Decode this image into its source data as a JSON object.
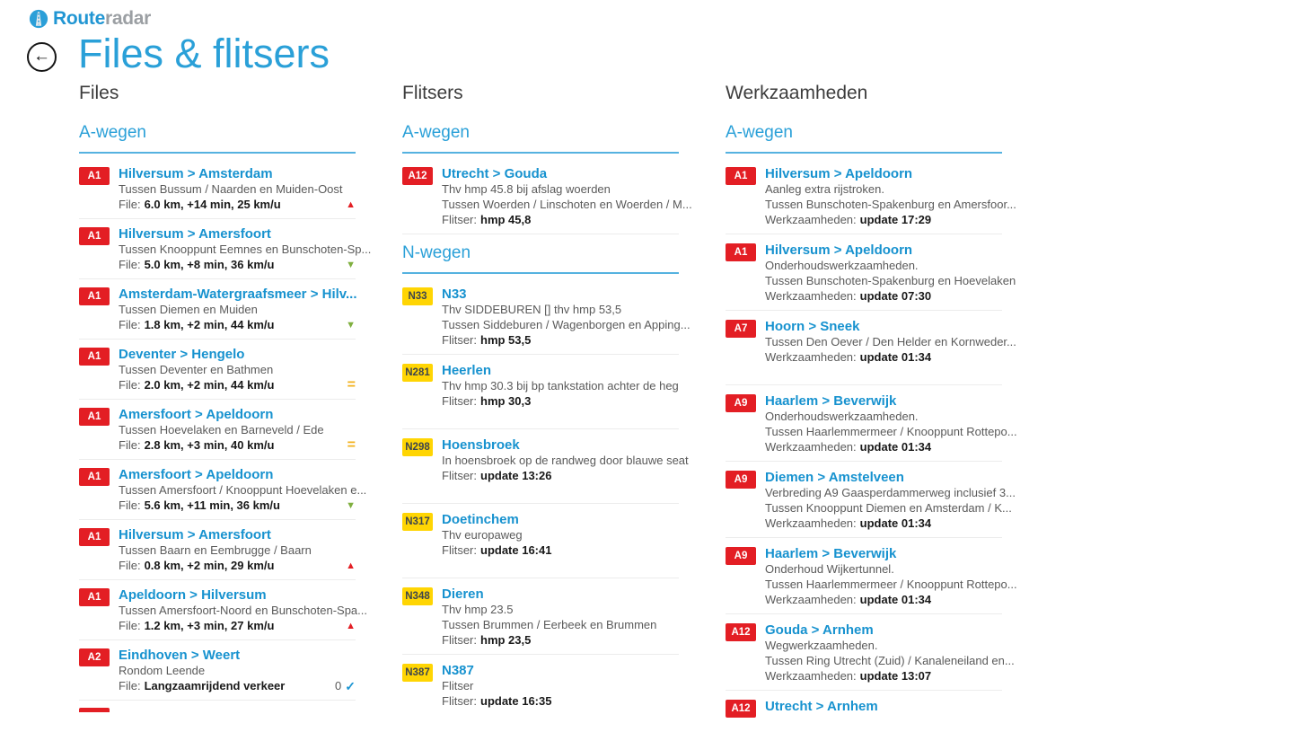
{
  "logo": {
    "route": "Route",
    "radar": "radar"
  },
  "back_icon": "←",
  "title": "Files & flitsers",
  "icons": {
    "up": "▲",
    "down": "▼",
    "equal": "=",
    "check": "✓"
  },
  "colors": {
    "accent_blue": "#2aa0d8",
    "item_title_blue": "#1792cf",
    "badge_red": "#e31e24",
    "badge_yellow": "#ffd503",
    "trend_up_red": "#e31e24",
    "trend_down_green": "#7faf3f",
    "trend_equal_orange": "#f2b21d",
    "check_blue": "#1b95d2"
  },
  "columns": [
    {
      "header": "Files",
      "cutoff_badge": true,
      "tall_items": false,
      "sections": [
        {
          "header": "A-wegen",
          "items": [
            {
              "badge": "A1",
              "title": "Hilversum > Amsterdam",
              "lines": [
                "Tussen Bussum / Naarden en Muiden-Oost"
              ],
              "status_label": "File:",
              "status_value": "6.0 km, +14 min, 25 km/u",
              "trend": "up"
            },
            {
              "badge": "A1",
              "title": "Hilversum > Amersfoort",
              "lines": [
                "Tussen Knooppunt Eemnes en Bunschoten-Sp..."
              ],
              "status_label": "File:",
              "status_value": "5.0 km, +8 min, 36 km/u",
              "trend": "down"
            },
            {
              "badge": "A1",
              "title": "Amsterdam-Watergraafsmeer > Hilv...",
              "lines": [
                "Tussen Diemen en Muiden"
              ],
              "status_label": "File:",
              "status_value": "1.8 km, +2 min, 44 km/u",
              "trend": "down"
            },
            {
              "badge": "A1",
              "title": "Deventer > Hengelo",
              "lines": [
                "Tussen Deventer en Bathmen"
              ],
              "status_label": "File:",
              "status_value": "2.0 km, +2 min, 44 km/u",
              "trend": "equal"
            },
            {
              "badge": "A1",
              "title": "Amersfoort > Apeldoorn",
              "lines": [
                "Tussen Hoevelaken en Barneveld / Ede"
              ],
              "status_label": "File:",
              "status_value": "2.8 km, +3 min, 40 km/u",
              "trend": "equal"
            },
            {
              "badge": "A1",
              "title": "Amersfoort > Apeldoorn",
              "lines": [
                "Tussen Amersfoort / Knooppunt Hoevelaken e..."
              ],
              "status_label": "File:",
              "status_value": "5.6 km, +11 min, 36 km/u",
              "trend": "down"
            },
            {
              "badge": "A1",
              "title": "Hilversum > Amersfoort",
              "lines": [
                "Tussen Baarn en Eembrugge / Baarn"
              ],
              "status_label": "File:",
              "status_value": "0.8 km, +2 min, 29 km/u",
              "trend": "up"
            },
            {
              "badge": "A1",
              "title": "Apeldoorn > Hilversum",
              "lines": [
                "Tussen Amersfoort-Noord en Bunschoten-Spa..."
              ],
              "status_label": "File:",
              "status_value": "1.2 km, +3 min, 27 km/u",
              "trend": "up"
            },
            {
              "badge": "A2",
              "title": "Eindhoven > Weert",
              "lines": [
                "Rondom Leende"
              ],
              "status_label": "File:",
              "status_value": "Langzaamrijdend verkeer",
              "trend": "check",
              "trend_prefix": "0"
            }
          ]
        }
      ]
    },
    {
      "header": "Flitsers",
      "cutoff_badge": false,
      "tall_items": true,
      "sections": [
        {
          "header": "A-wegen",
          "items": [
            {
              "badge": "A12",
              "title": "Utrecht > Gouda",
              "lines": [
                "Thv hmp 45.8 bij afslag woerden",
                "Tussen Woerden / Linschoten en Woerden / M..."
              ],
              "status_label": "Flitser:",
              "status_value": "hmp 45,8",
              "trend": null
            }
          ]
        },
        {
          "header": "N-wegen",
          "items": [
            {
              "badge": "N33",
              "title": "N33",
              "lines": [
                "Thv SIDDEBUREN [] thv hmp 53,5",
                "Tussen Siddeburen / Wagenborgen en Apping..."
              ],
              "status_label": "Flitser:",
              "status_value": "hmp 53,5",
              "trend": null
            },
            {
              "badge": "N281",
              "title": "Heerlen",
              "lines": [
                "Thv hmp 30.3 bij bp tankstation achter de heg"
              ],
              "status_label": "Flitser:",
              "status_value": "hmp 30,3",
              "trend": null
            },
            {
              "badge": "N298",
              "title": "Hoensbroek",
              "lines": [
                "In hoensbroek op de randweg door blauwe seat"
              ],
              "status_label": "Flitser:",
              "status_value": "update 13:26",
              "trend": null
            },
            {
              "badge": "N317",
              "title": "Doetinchem",
              "lines": [
                "Thv europaweg"
              ],
              "status_label": "Flitser:",
              "status_value": "update 16:41",
              "trend": null
            },
            {
              "badge": "N348",
              "title": "Dieren",
              "lines": [
                "Thv hmp 23.5",
                "Tussen Brummen / Eerbeek en Brummen"
              ],
              "status_label": "Flitser:",
              "status_value": "hmp 23,5",
              "trend": null
            },
            {
              "badge": "N387",
              "title": "N387",
              "lines": [
                "Flitser"
              ],
              "status_label": "Flitser:",
              "status_value": "update 16:35",
              "trend": null,
              "hide_divider": true
            }
          ]
        }
      ]
    },
    {
      "header": "Werkzaamheden",
      "cutoff_badge": false,
      "tall_items": true,
      "sections": [
        {
          "header": "A-wegen",
          "items": [
            {
              "badge": "A1",
              "title": "Hilversum > Apeldoorn",
              "lines": [
                "Aanleg extra rijstroken.",
                "Tussen Bunschoten-Spakenburg en Amersfoor..."
              ],
              "status_label": "Werkzaamheden:",
              "status_value": "update 17:29",
              "trend": null
            },
            {
              "badge": "A1",
              "title": "Hilversum > Apeldoorn",
              "lines": [
                "Onderhoudswerkzaamheden.",
                "Tussen Bunschoten-Spakenburg en Hoevelaken"
              ],
              "status_label": "Werkzaamheden:",
              "status_value": "update 07:30",
              "trend": null
            },
            {
              "badge": "A7",
              "title": "Hoorn > Sneek",
              "lines": [
                "Tussen Den Oever / Den Helder en Kornweder..."
              ],
              "status_label": "Werkzaamheden:",
              "status_value": "update 01:34",
              "trend": null
            },
            {
              "badge": "A9",
              "title": "Haarlem > Beverwijk",
              "lines": [
                "Onderhoudswerkzaamheden.",
                "Tussen Haarlemmermeer / Knooppunt Rottepo..."
              ],
              "status_label": "Werkzaamheden:",
              "status_value": "update 01:34",
              "trend": null
            },
            {
              "badge": "A9",
              "title": "Diemen > Amstelveen",
              "lines": [
                "Verbreding A9 Gaasperdammerweg inclusief 3...",
                "Tussen Knooppunt Diemen en Amsterdam / K..."
              ],
              "status_label": "Werkzaamheden:",
              "status_value": "update 01:34",
              "trend": null
            },
            {
              "badge": "A9",
              "title": "Haarlem > Beverwijk",
              "lines": [
                "Onderhoud Wijkertunnel.",
                "Tussen Haarlemmermeer / Knooppunt Rottepo..."
              ],
              "status_label": "Werkzaamheden:",
              "status_value": "update 01:34",
              "trend": null
            },
            {
              "badge": "A12",
              "title": "Gouda > Arnhem",
              "lines": [
                "Wegwerkzaamheden.",
                "Tussen Ring Utrecht (Zuid) / Kanaleneiland en..."
              ],
              "status_label": "Werkzaamheden:",
              "status_value": "update 13:07",
              "trend": null
            },
            {
              "badge": "A12",
              "title": "Utrecht > Arnhem",
              "lines": [],
              "status_label": null,
              "status_value": null,
              "trend": null,
              "hide_divider": true
            }
          ]
        }
      ]
    }
  ]
}
